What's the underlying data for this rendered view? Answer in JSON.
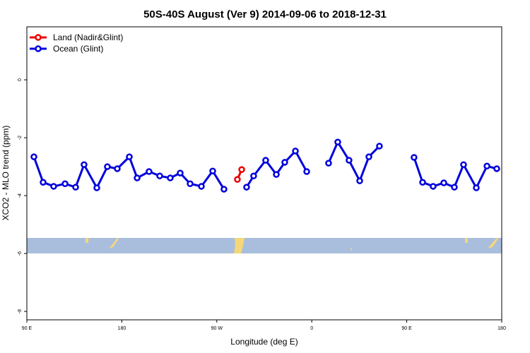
{
  "chart_data": {
    "type": "line",
    "title": "50S-40S August (Ver 9)   2014-09-06 to 2018-12-31",
    "x_label": "Longitude (deg E)",
    "y_label": "XCO2 - MLO trend (ppm)",
    "xlim": [
      90,
      540
    ],
    "ylim": [
      -8.29,
      1.83
    ],
    "xticks": [
      {
        "value": 90,
        "label": "90 E"
      },
      {
        "value": 180,
        "label": "180"
      },
      {
        "value": 270,
        "label": "90 W"
      },
      {
        "value": 360,
        "label": "0"
      },
      {
        "value": 450,
        "label": "90 E"
      },
      {
        "value": 540,
        "label": "180"
      }
    ],
    "yticks": [
      0,
      -2,
      -4,
      -6,
      -8
    ],
    "legend": "upper left",
    "series": [
      {
        "name": "Land (Nadir&Glint)",
        "color": "#ee0000",
        "x": [
          289.5,
          293.6
        ],
        "values": [
          -3.44,
          -3.1
        ]
      },
      {
        "name": "Ocean (Glint)",
        "color": "#0000dd",
        "x": [
          96.7,
          105.4,
          115.4,
          126.2,
          136.2,
          144.2,
          156.3,
          166.3,
          175.7,
          187.1,
          194.5,
          205.8,
          215.9,
          225.9,
          235.3,
          244.7,
          255.4,
          266.1,
          276.8,
          null,
          298.2,
          304.9,
          316.3,
          326.4,
          334.4,
          344.5,
          355.2,
          null,
          375.9,
          384.6,
          395.3,
          405.4,
          414.1,
          424.1,
          null,
          456.9,
          465.0,
          475.0,
          485.1,
          495.1,
          503.8,
          515.9,
          526.0,
          535.3
        ],
        "values": [
          -2.66,
          -3.54,
          -3.68,
          -3.59,
          -3.71,
          -2.93,
          -3.73,
          -3.0,
          -3.07,
          -2.66,
          -3.39,
          -3.17,
          -3.32,
          -3.39,
          -3.22,
          -3.59,
          -3.68,
          -3.15,
          -3.78,
          null,
          -3.71,
          -3.32,
          -2.78,
          -3.27,
          -2.85,
          -2.46,
          -3.17,
          null,
          -2.88,
          -2.15,
          -2.78,
          -3.49,
          -2.66,
          -2.29,
          null,
          -2.68,
          -3.54,
          -3.68,
          -3.56,
          -3.71,
          -2.93,
          -3.73,
          -2.98,
          -3.07
        ]
      }
    ]
  }
}
